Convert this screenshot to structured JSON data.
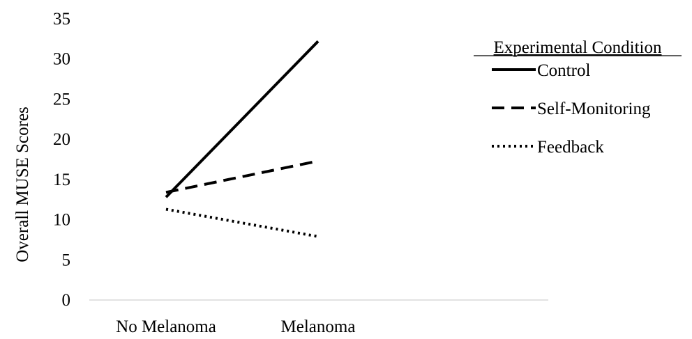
{
  "chart_data": {
    "type": "line",
    "categories": [
      "No Melanoma",
      "Melanoma"
    ],
    "ylabel": "Overall MUSE Scores",
    "xlabel": "",
    "ylim": [
      0,
      35
    ],
    "yticks": [
      0,
      5,
      10,
      15,
      20,
      25,
      30,
      35
    ],
    "grid": false,
    "legend": {
      "title": "Experimental Condition",
      "placement": "right"
    },
    "series": [
      {
        "name": "Control",
        "values": [
          12.8,
          32.2
        ],
        "style": "solid",
        "color": "#000000"
      },
      {
        "name": "Self-Monitoring",
        "values": [
          13.4,
          17.3
        ],
        "style": "dashed",
        "color": "#000000"
      },
      {
        "name": "Feedback",
        "values": [
          11.3,
          7.9
        ],
        "style": "dotted",
        "color": "#000000"
      }
    ]
  }
}
